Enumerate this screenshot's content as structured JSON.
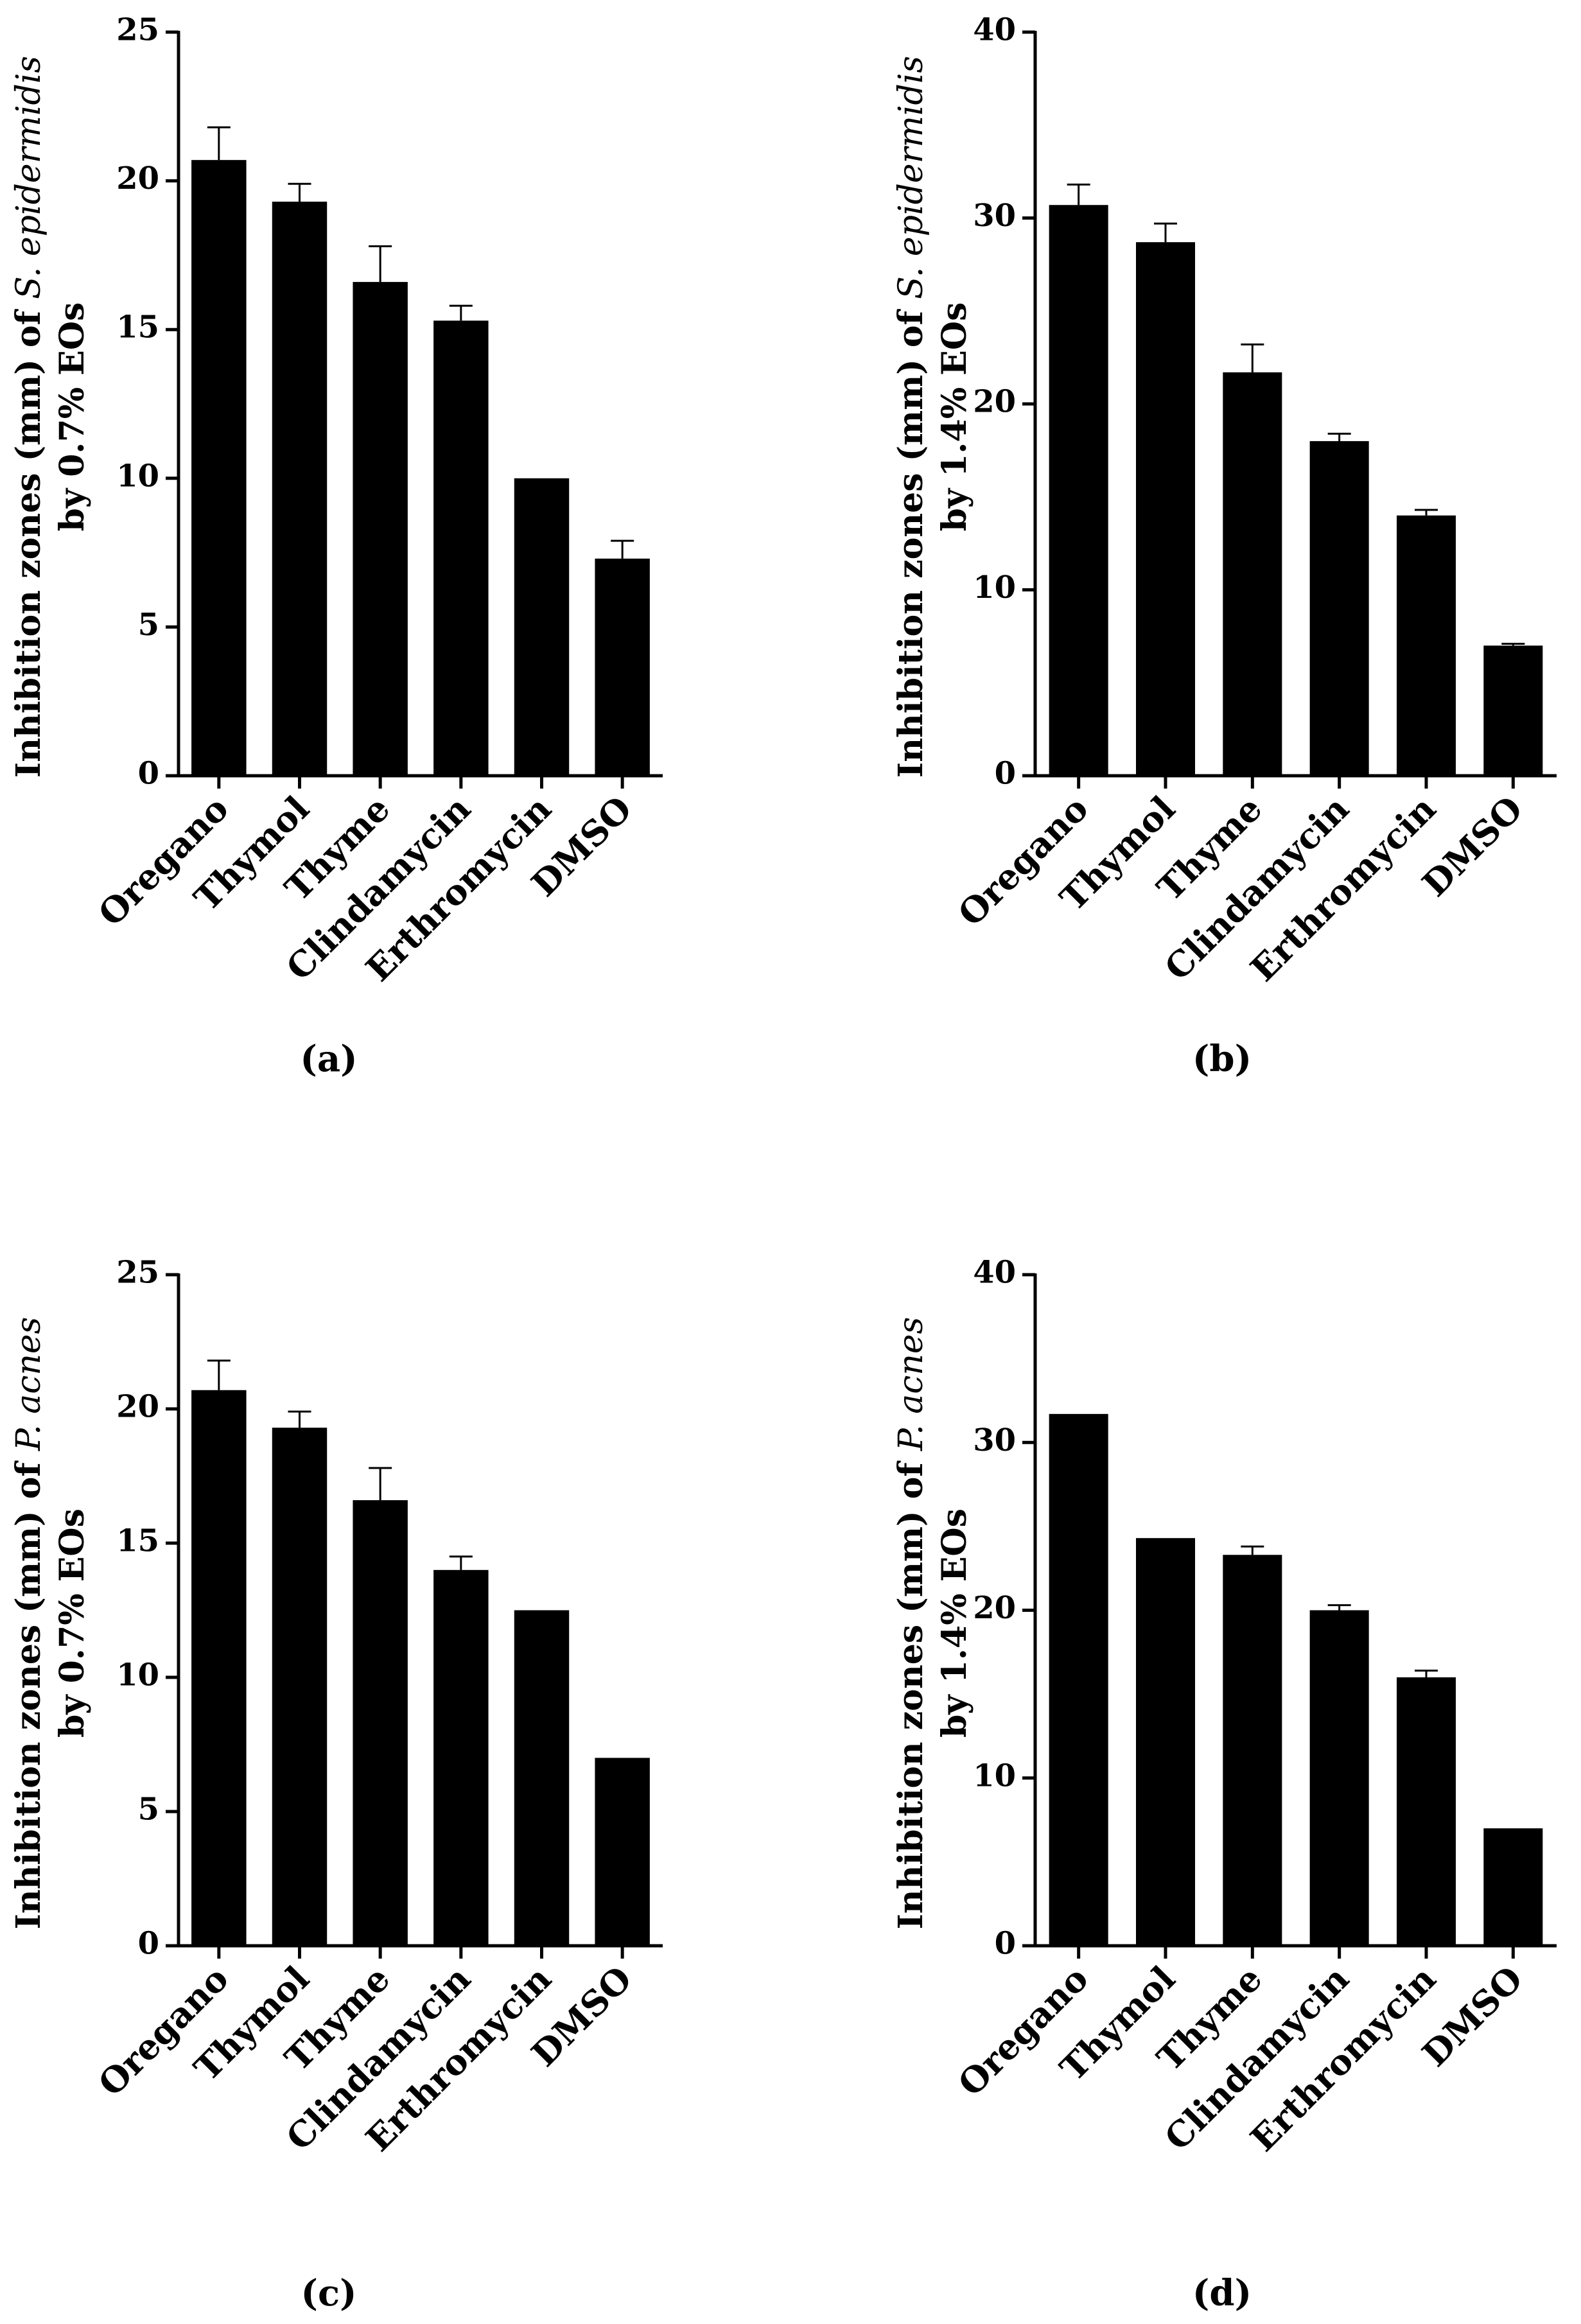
{
  "chart_data": [
    {
      "panel": "(a)",
      "type": "bar",
      "categories": [
        "Oregano",
        "Thymol",
        "Thyme",
        "Clindamycin",
        "Erthromycin",
        "DMSO"
      ],
      "values": [
        20.7,
        19.3,
        16.6,
        15.3,
        10.0,
        7.3
      ],
      "errors": [
        1.1,
        0.6,
        1.2,
        0.5,
        0,
        0.6
      ],
      "ylim": [
        0,
        25
      ],
      "yticks": [
        "0",
        "5",
        "10",
        "15",
        "20",
        "25"
      ],
      "ylabel_line1_prefix": "Inhibition zones (mm) of ",
      "ylabel_line1_italic": "S. epidermidis",
      "ylabel_line2": "by 0.7% EOs",
      "color": "#000000"
    },
    {
      "panel": "(b)",
      "type": "bar",
      "categories": [
        "Oregano",
        "Thymol",
        "Thyme",
        "Clindamycin",
        "Erthromycin",
        "DMSO"
      ],
      "values": [
        30.7,
        28.7,
        21.7,
        18.0,
        14.0,
        7.0
      ],
      "errors": [
        1.1,
        1.0,
        1.5,
        0.4,
        0.3,
        0.1
      ],
      "ylim": [
        0,
        40
      ],
      "yticks": [
        "0",
        "10",
        "20",
        "30",
        "40"
      ],
      "ylabel_line1_prefix": "Inhibition zones (mm) of ",
      "ylabel_line1_italic": "S. epidermidis",
      "ylabel_line2": "by 1.4% EOs",
      "color": "#000000"
    },
    {
      "panel": "(c)",
      "type": "bar",
      "categories": [
        "Oregano",
        "Thymol",
        "Thyme",
        "Clindamycin",
        "Erthromycin",
        "DMSO"
      ],
      "values": [
        20.7,
        19.3,
        16.6,
        14.0,
        12.5,
        7.0
      ],
      "errors": [
        1.1,
        0.6,
        1.2,
        0.5,
        0,
        0
      ],
      "ylim": [
        0,
        25
      ],
      "yticks": [
        "0",
        "5",
        "10",
        "15",
        "20",
        "25"
      ],
      "ylabel_line1_prefix": "Inhibition zones (mm) of ",
      "ylabel_line1_italic": "P. acnes",
      "ylabel_line2": "by 0.7% EOs",
      "color": "#000000"
    },
    {
      "panel": "(d)",
      "type": "bar",
      "categories": [
        "Oregano",
        "Thymol",
        "Thyme",
        "Clindamycin",
        "Erthromycin",
        "DMSO"
      ],
      "values": [
        31.7,
        24.3,
        23.3,
        20.0,
        16.0,
        7.0
      ],
      "errors": [
        0,
        0,
        0.5,
        0.3,
        0.4,
        0
      ],
      "ylim": [
        0,
        40
      ],
      "yticks": [
        "0",
        "10",
        "20",
        "30",
        "40"
      ],
      "ylabel_line1_prefix": "Inhibition zones (mm) of ",
      "ylabel_line1_italic": "P. acnes",
      "ylabel_line2": "by 1.4% EOs",
      "color": "#000000"
    }
  ]
}
